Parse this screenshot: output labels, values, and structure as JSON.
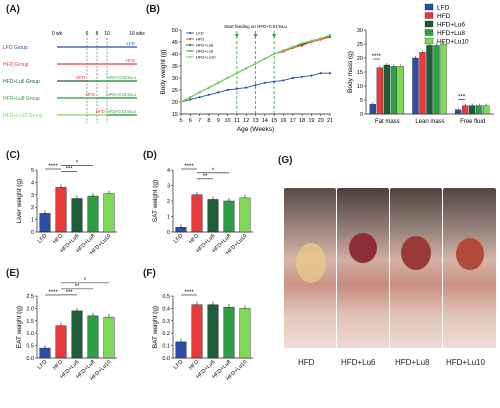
{
  "panels": {
    "A": "(A)",
    "B": "(B)",
    "C": "(C)",
    "D": "(D)",
    "E": "(E)",
    "F": "(F)",
    "G": "(G)"
  },
  "colors": {
    "LFD": "#2c4ea6",
    "HFD": "#e83a3a",
    "HFD+Lu6": "#1f5c3a",
    "HFD+Lu8": "#2e9e46",
    "HFD+Lu10": "#7ed957"
  },
  "design": {
    "time_labels": {
      "start": "0 wk",
      "end": "16 wks",
      "t6": "6",
      "t8": "8",
      "t10": "10"
    },
    "groups": [
      {
        "name": "LFD Group",
        "color": "#2c4ea6",
        "bar1": "LFD",
        "bar2": "",
        "switch": 0
      },
      {
        "name": "HFD Group",
        "color": "#e83a3a",
        "bar1": "HFD",
        "bar2": "",
        "switch": 0
      },
      {
        "name": "HFD+Lu6 Group",
        "color": "#1f5c3a",
        "bar1": "HFD",
        "bar2": "HFD+0.01%Lu",
        "switch": 6
      },
      {
        "name": "HFD+Lu8 Group",
        "color": "#2e9e46",
        "bar1": "HFD",
        "bar2": "HFD+0.01%Lu",
        "switch": 8
      },
      {
        "name": "HFD+Lu10 Group",
        "color": "#7ed957",
        "bar1": "HFD",
        "bar2": "HFD+0.01%Lu",
        "switch": 10
      }
    ]
  },
  "legend_top": [
    "LFD",
    "HFD",
    "HFD+Lu6",
    "HFD+Lu8",
    "HFD+Lu10"
  ],
  "chart_data": [
    {
      "id": "B-line",
      "type": "line",
      "title": "",
      "xlabel": "Age (Weeks)",
      "ylabel": "Body weight (g)",
      "xlim": [
        5,
        21
      ],
      "ylim": [
        15,
        50
      ],
      "x": [
        5,
        6,
        7,
        8,
        9,
        10,
        11,
        12,
        13,
        14,
        15,
        16,
        17,
        18,
        19,
        20,
        21
      ],
      "xticks": [
        5,
        6,
        7,
        8,
        9,
        10,
        11,
        12,
        13,
        14,
        15,
        16,
        17,
        18,
        19,
        20,
        21
      ],
      "yticks": [
        15,
        20,
        25,
        30,
        35,
        40,
        45,
        50
      ],
      "annotation": "Start feeding on HFD+0.01%Lu",
      "arrows_at": [
        11,
        13,
        15
      ],
      "series": [
        {
          "name": "LFD",
          "values": [
            20,
            21,
            22,
            23,
            24,
            25,
            25.5,
            26,
            27,
            28,
            28.5,
            29,
            30,
            30.5,
            31,
            32,
            32
          ]
        },
        {
          "name": "HFD",
          "values": [
            20,
            22,
            24,
            26,
            28,
            30,
            32,
            34,
            36,
            38,
            40,
            41,
            42.5,
            43.5,
            45,
            46,
            47
          ]
        },
        {
          "name": "HFD+Lu6",
          "values": [
            20,
            22,
            24,
            26,
            28,
            30,
            32,
            34,
            36,
            38,
            40,
            41.5,
            43,
            44,
            45.5,
            46.5,
            47.5
          ]
        },
        {
          "name": "HFD+Lu8",
          "values": [
            20,
            22,
            24,
            26,
            28,
            30,
            32,
            34,
            36,
            38,
            40,
            41.5,
            43,
            44.5,
            45.5,
            46.5,
            47.5
          ]
        },
        {
          "name": "HFD+Lu10",
          "values": [
            20,
            22,
            24,
            26,
            28,
            30,
            32,
            34,
            36,
            38,
            40,
            41.5,
            43,
            44.5,
            45.5,
            46.5,
            48
          ]
        }
      ]
    },
    {
      "id": "B-bar",
      "type": "bar",
      "title": "",
      "xlabel": "",
      "ylabel": "Body mass (g)",
      "ylim": [
        0,
        30
      ],
      "yticks": [
        0,
        5,
        10,
        15,
        20,
        25,
        30
      ],
      "categories": [
        "Fat mass",
        "Lean mass",
        "Free fluid"
      ],
      "series": [
        {
          "name": "LFD",
          "values": [
            3.5,
            20,
            1.5
          ]
        },
        {
          "name": "HFD",
          "values": [
            16.5,
            22,
            3
          ]
        },
        {
          "name": "HFD+Lu6",
          "values": [
            17.5,
            24.5,
            3
          ]
        },
        {
          "name": "HFD+Lu8",
          "values": [
            17,
            24.5,
            3
          ]
        },
        {
          "name": "HFD+Lu10",
          "values": [
            17,
            25,
            3
          ]
        }
      ],
      "significance": [
        {
          "category": "Fat mass",
          "label": "****"
        },
        {
          "category": "Free fluid",
          "label": "***"
        }
      ]
    },
    {
      "id": "C",
      "type": "bar",
      "ylabel": "Liver weight (g)",
      "ylim": [
        0,
        5
      ],
      "yticks": [
        0,
        1,
        2,
        3,
        4,
        5
      ],
      "categories": [
        "LFD",
        "HFD",
        "HFD+Lu6",
        "HFD+Lu8",
        "HFD+Lu10"
      ],
      "values": [
        1.5,
        3.6,
        2.7,
        2.9,
        3.1
      ],
      "significance": [
        {
          "from": 0,
          "to": 1,
          "label": "****"
        },
        {
          "from": 1,
          "to": 2,
          "label": "***"
        },
        {
          "from": 1,
          "to": 3,
          "label": "*"
        }
      ]
    },
    {
      "id": "D",
      "type": "bar",
      "ylabel": "SAT weight (g)",
      "ylim": [
        0,
        4
      ],
      "yticks": [
        0,
        1,
        2,
        3,
        4
      ],
      "categories": [
        "LFD",
        "HFD",
        "HFD+Lu6",
        "HFD+Lu8",
        "HFD+Lu10"
      ],
      "values": [
        0.3,
        2.4,
        2.1,
        2.0,
        2.2
      ],
      "significance": [
        {
          "from": 0,
          "to": 1,
          "label": "****"
        },
        {
          "from": 1,
          "to": 2,
          "label": "**"
        },
        {
          "from": 1,
          "to": 3,
          "label": "*"
        }
      ]
    },
    {
      "id": "E",
      "type": "bar",
      "ylabel": "EAT weight (g)",
      "ylim": [
        0,
        2.5
      ],
      "yticks": [
        0.0,
        0.5,
        1.0,
        1.5,
        2.0,
        2.5
      ],
      "categories": [
        "LFD",
        "HFD",
        "HFD+Lu6",
        "HFD+Lu8",
        "HFD+Lu10"
      ],
      "values": [
        0.4,
        1.3,
        1.9,
        1.7,
        1.65
      ],
      "significance": [
        {
          "from": 0,
          "to": 1,
          "label": "****"
        },
        {
          "from": 1,
          "to": 2,
          "label": "***"
        },
        {
          "from": 1,
          "to": 3,
          "label": "**"
        },
        {
          "from": 1,
          "to": 4,
          "label": "*"
        }
      ]
    },
    {
      "id": "F",
      "type": "bar",
      "ylabel": "BAT weight (g)",
      "ylim": [
        0,
        0.5
      ],
      "yticks": [
        0.0,
        0.1,
        0.2,
        0.3,
        0.4,
        0.5
      ],
      "categories": [
        "LFD",
        "HFD",
        "HFD+Lu6",
        "HFD+Lu8",
        "HFD+Lu10"
      ],
      "values": [
        0.13,
        0.43,
        0.43,
        0.41,
        0.4
      ],
      "significance": [
        {
          "from": 0,
          "to": 1,
          "label": "****"
        }
      ]
    }
  ],
  "photos": {
    "labels": [
      "HFD",
      "HFD+Lu6",
      "HFD+Lu8",
      "HFD+Lu10"
    ]
  }
}
